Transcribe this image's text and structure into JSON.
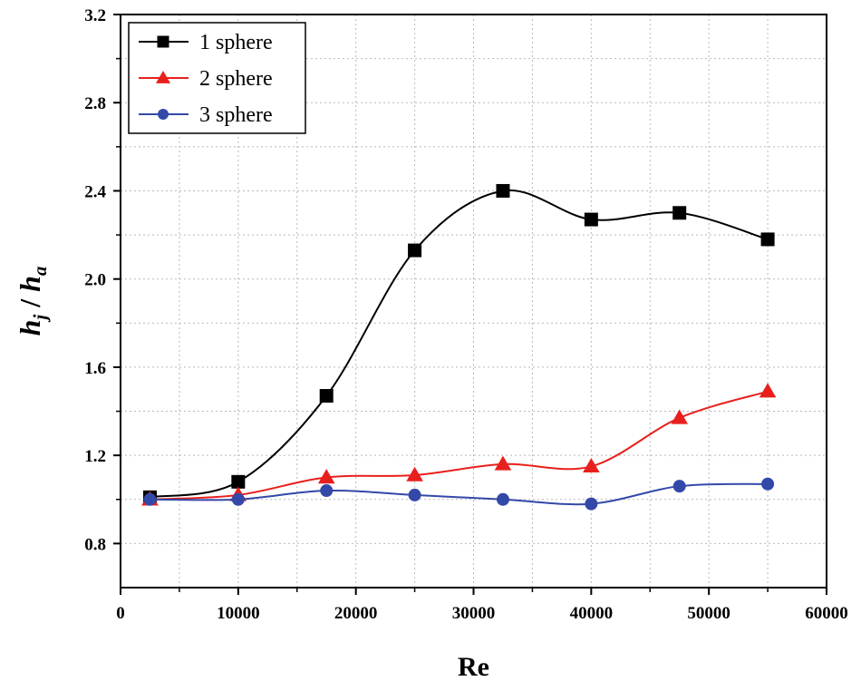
{
  "chart_data": {
    "type": "line",
    "xlabel": "Re",
    "ylabel": {
      "main": "h",
      "sub1": "j",
      "sep": " / ",
      "main2": "h",
      "sub2": "a"
    },
    "xlim": [
      0,
      60000
    ],
    "ylim": [
      0.6,
      3.2
    ],
    "xticks": [
      0,
      10000,
      20000,
      30000,
      40000,
      50000,
      60000
    ],
    "xtick_labels": [
      "0",
      "10000",
      "20000",
      "30000",
      "40000",
      "50000",
      "60000"
    ],
    "yticks": [
      0.8,
      1.2,
      1.6,
      2.0,
      2.4,
      2.8,
      3.2
    ],
    "ytick_labels": [
      "0.8",
      "1.2",
      "1.6",
      "2.0",
      "2.4",
      "2.8",
      "3.2"
    ],
    "grid": true,
    "legend_position": "top-left",
    "series": [
      {
        "name": "1 sphere",
        "color": "#000000",
        "marker": "square",
        "x": [
          2500,
          10000,
          17500,
          25000,
          32500,
          40000,
          47500,
          55000
        ],
        "y": [
          1.01,
          1.08,
          1.47,
          2.13,
          2.4,
          2.27,
          2.3,
          2.18
        ]
      },
      {
        "name": "2 sphere",
        "color": "#e8201c",
        "marker": "triangle",
        "x": [
          2500,
          10000,
          17500,
          25000,
          32500,
          40000,
          47500,
          55000
        ],
        "y": [
          1.0,
          1.02,
          1.1,
          1.11,
          1.16,
          1.15,
          1.37,
          1.49
        ]
      },
      {
        "name": "3 sphere",
        "color": "#3349a8",
        "marker": "circle",
        "x": [
          2500,
          10000,
          17500,
          25000,
          32500,
          40000,
          47500,
          55000
        ],
        "y": [
          1.0,
          1.0,
          1.04,
          1.02,
          1.0,
          0.98,
          1.06,
          1.07
        ]
      }
    ]
  }
}
